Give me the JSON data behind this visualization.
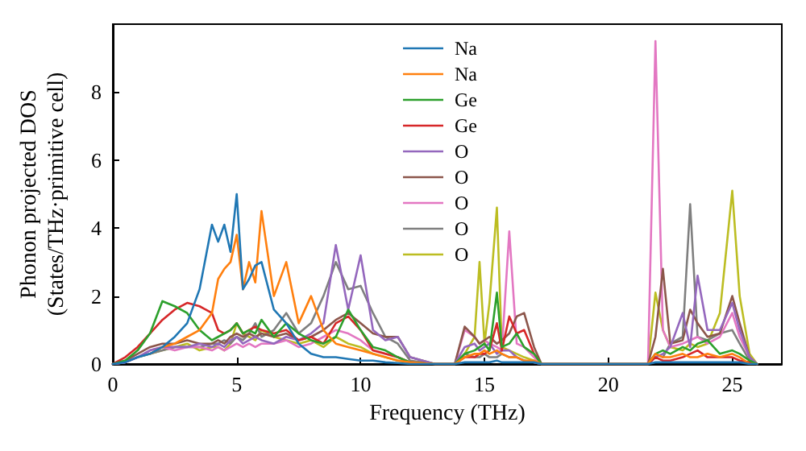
{
  "chart_data": {
    "type": "line",
    "xlabel": "Frequency (THz)",
    "ylabel": "Phonon projected DOS\n(States/THz·primitive cell)",
    "x": [
      0,
      0.5,
      1,
      1.5,
      2,
      2.5,
      3,
      3.5,
      4,
      4.25,
      4.5,
      4.75,
      5,
      5.25,
      5.5,
      5.75,
      6,
      6.5,
      7,
      7.5,
      8,
      8.5,
      9,
      9.5,
      10,
      10.5,
      11,
      11.5,
      12,
      13,
      13.8,
      14.2,
      14.6,
      14.8,
      15,
      15.2,
      15.5,
      15.7,
      16,
      16.3,
      16.6,
      17,
      17.3,
      18,
      21,
      21.6,
      21.9,
      22.2,
      22.5,
      23,
      23.3,
      23.6,
      24,
      24.5,
      25,
      25.3,
      25.7,
      26
    ],
    "series": [
      {
        "name": "Na",
        "color": "#1f77b4",
        "values": [
          0,
          0.05,
          0.2,
          0.3,
          0.5,
          0.8,
          1.2,
          2.2,
          4.1,
          3.6,
          4.1,
          3.3,
          5.0,
          2.2,
          2.5,
          2.9,
          3.0,
          1.6,
          1.2,
          0.6,
          0.3,
          0.2,
          0.2,
          0.15,
          0.1,
          0.1,
          0.05,
          0.03,
          0,
          0,
          0,
          0.05,
          0.05,
          0.05,
          0.05,
          0.05,
          0.1,
          0.05,
          0.05,
          0.05,
          0.05,
          0.05,
          0,
          0,
          0,
          0,
          0.05,
          0.05,
          0.05,
          0.05,
          0.05,
          0.05,
          0.05,
          0.05,
          0.05,
          0.05,
          0,
          0
        ]
      },
      {
        "name": "Na",
        "color": "#ff7f0e",
        "values": [
          null,
          null,
          null,
          0.3,
          0.5,
          0.6,
          0.8,
          1.0,
          1.5,
          2.5,
          2.8,
          3.0,
          3.8,
          2.2,
          3.0,
          2.4,
          4.5,
          2.0,
          3.0,
          1.2,
          2.0,
          1.0,
          0.6,
          0.5,
          0.4,
          0.3,
          0.2,
          0.1,
          0.05,
          0,
          0,
          0.2,
          0.3,
          0.3,
          0.4,
          0.3,
          0.4,
          0.3,
          0.2,
          0.2,
          0.1,
          0.1,
          0,
          0,
          0,
          0,
          0.3,
          0.2,
          0.2,
          0.3,
          0.2,
          0.2,
          0.3,
          0.2,
          0.3,
          0.2,
          0,
          0
        ]
      },
      {
        "name": "Ge",
        "color": "#2ca02c",
        "values": [
          0,
          0.1,
          0.4,
          0.9,
          1.85,
          1.7,
          1.5,
          1.0,
          0.7,
          0.8,
          0.9,
          1.0,
          1.2,
          0.9,
          1.0,
          0.9,
          1.3,
          0.8,
          1.2,
          0.9,
          0.7,
          0.6,
          0.8,
          1.6,
          1.0,
          0.5,
          0.4,
          0.2,
          0.05,
          0,
          0,
          0.3,
          0.4,
          0.5,
          0.6,
          0.4,
          2.1,
          0.5,
          0.6,
          0.9,
          0.5,
          0.3,
          0,
          0,
          0,
          0,
          0.3,
          0.4,
          0.3,
          0.5,
          0.4,
          0.6,
          0.7,
          0.3,
          0.4,
          0.3,
          0.1,
          0
        ]
      },
      {
        "name": "Ge",
        "color": "#d62728",
        "values": [
          0,
          0.2,
          0.5,
          0.9,
          1.3,
          1.6,
          1.8,
          1.7,
          1.5,
          1.0,
          0.9,
          1.0,
          1.2,
          0.9,
          1.0,
          1.1,
          1.0,
          0.9,
          1.0,
          0.7,
          0.8,
          0.6,
          1.2,
          1.4,
          1.0,
          0.4,
          0.3,
          0.2,
          0.05,
          0,
          0,
          0.2,
          0.2,
          0.3,
          0.3,
          0.4,
          1.2,
          0.4,
          1.4,
          0.9,
          1.0,
          0.3,
          0,
          0,
          0,
          0,
          0.2,
          0.1,
          0.1,
          0.2,
          0.3,
          0.4,
          0.2,
          0.2,
          0.2,
          0.1,
          0.05,
          0
        ]
      },
      {
        "name": "O",
        "color": "#9467bd",
        "values": [
          0,
          0.05,
          0.2,
          0.4,
          0.5,
          0.5,
          0.5,
          0.6,
          0.5,
          0.6,
          0.5,
          0.7,
          0.8,
          0.6,
          0.7,
          0.8,
          0.7,
          0.6,
          0.8,
          0.7,
          0.9,
          1.2,
          3.5,
          1.6,
          3.2,
          1.0,
          0.7,
          0.8,
          0.2,
          0,
          0,
          0.5,
          0.6,
          0.4,
          0.5,
          0.6,
          0.3,
          0.4,
          0.4,
          0.2,
          0.1,
          0.05,
          0,
          0,
          0,
          0,
          0.2,
          0.3,
          0.5,
          1.5,
          0.5,
          2.6,
          1.0,
          1.0,
          1.8,
          1.0,
          0.2,
          0
        ]
      },
      {
        "name": "O",
        "color": "#8c564b",
        "values": [
          0,
          0.1,
          0.3,
          0.5,
          0.6,
          0.6,
          0.7,
          0.6,
          0.6,
          0.7,
          0.6,
          0.8,
          0.9,
          0.8,
          0.9,
          0.8,
          0.9,
          0.8,
          0.9,
          0.7,
          0.8,
          1.0,
          1.3,
          1.5,
          1.2,
          0.9,
          0.8,
          0.8,
          0.2,
          0,
          0,
          1.1,
          0.8,
          0.6,
          0.7,
          0.8,
          0.6,
          0.7,
          0.9,
          1.4,
          1.5,
          0.5,
          0,
          0,
          0,
          0,
          0.8,
          2.8,
          0.6,
          0.7,
          1.6,
          1.2,
          0.8,
          0.9,
          2.0,
          1.2,
          0.2,
          0
        ]
      },
      {
        "name": "O",
        "color": "#e377c2",
        "values": [
          0,
          0.05,
          0.2,
          0.4,
          0.5,
          0.4,
          0.5,
          0.5,
          0.4,
          0.5,
          0.4,
          0.5,
          0.6,
          0.5,
          0.6,
          0.5,
          0.6,
          0.6,
          0.7,
          0.5,
          0.6,
          0.8,
          1.0,
          0.9,
          0.7,
          0.4,
          0.3,
          0.2,
          0.05,
          0,
          0,
          1.0,
          0.8,
          0.6,
          0.7,
          0.6,
          0.5,
          0.4,
          3.9,
          0.6,
          0.5,
          0.2,
          0,
          0,
          0,
          0,
          9.5,
          1.0,
          0.5,
          0.6,
          0.7,
          0.8,
          0.6,
          0.8,
          1.5,
          0.8,
          0.2,
          0
        ]
      },
      {
        "name": "O",
        "color": "#7f7f7f",
        "values": [
          0,
          0.05,
          0.2,
          0.3,
          0.4,
          0.5,
          0.5,
          0.5,
          0.6,
          0.6,
          0.7,
          0.6,
          0.8,
          0.7,
          0.9,
          1.2,
          0.8,
          1.0,
          1.5,
          0.9,
          1.2,
          2.0,
          3.0,
          2.2,
          2.3,
          1.5,
          0.8,
          0.6,
          0.1,
          0,
          0,
          0.3,
          0.2,
          0.2,
          0.3,
          0.2,
          0.2,
          0.3,
          0.2,
          0.2,
          0.1,
          0.05,
          0,
          0,
          0,
          0,
          0.3,
          0.2,
          0.6,
          0.8,
          4.7,
          0.8,
          0.7,
          0.9,
          1.0,
          0.6,
          0.1,
          0
        ]
      },
      {
        "name": "O",
        "color": "#bcbd22",
        "values": [
          null,
          null,
          0.2,
          0.3,
          0.4,
          0.5,
          0.6,
          0.4,
          0.5,
          0.5,
          0.4,
          0.6,
          1.2,
          0.9,
          0.8,
          0.7,
          1.0,
          0.8,
          0.7,
          0.6,
          0.7,
          0.5,
          0.8,
          0.6,
          0.5,
          0.3,
          0.2,
          0.1,
          0.05,
          0,
          0,
          0.3,
          0.8,
          3.0,
          0.6,
          1.8,
          4.6,
          0.5,
          0.4,
          0.3,
          0.2,
          0.1,
          0,
          0,
          0,
          0,
          2.1,
          1.0,
          0.5,
          0.4,
          0.6,
          0.5,
          0.6,
          1.5,
          5.1,
          2.0,
          0.3,
          0
        ]
      }
    ],
    "xlim": [
      0,
      27
    ],
    "xticks": [
      0,
      5,
      10,
      15,
      20,
      25
    ],
    "ylim": [
      0,
      10
    ],
    "yticks": [
      0,
      2,
      4,
      6,
      8
    ],
    "legend": "top",
    "line_style": "solid"
  }
}
